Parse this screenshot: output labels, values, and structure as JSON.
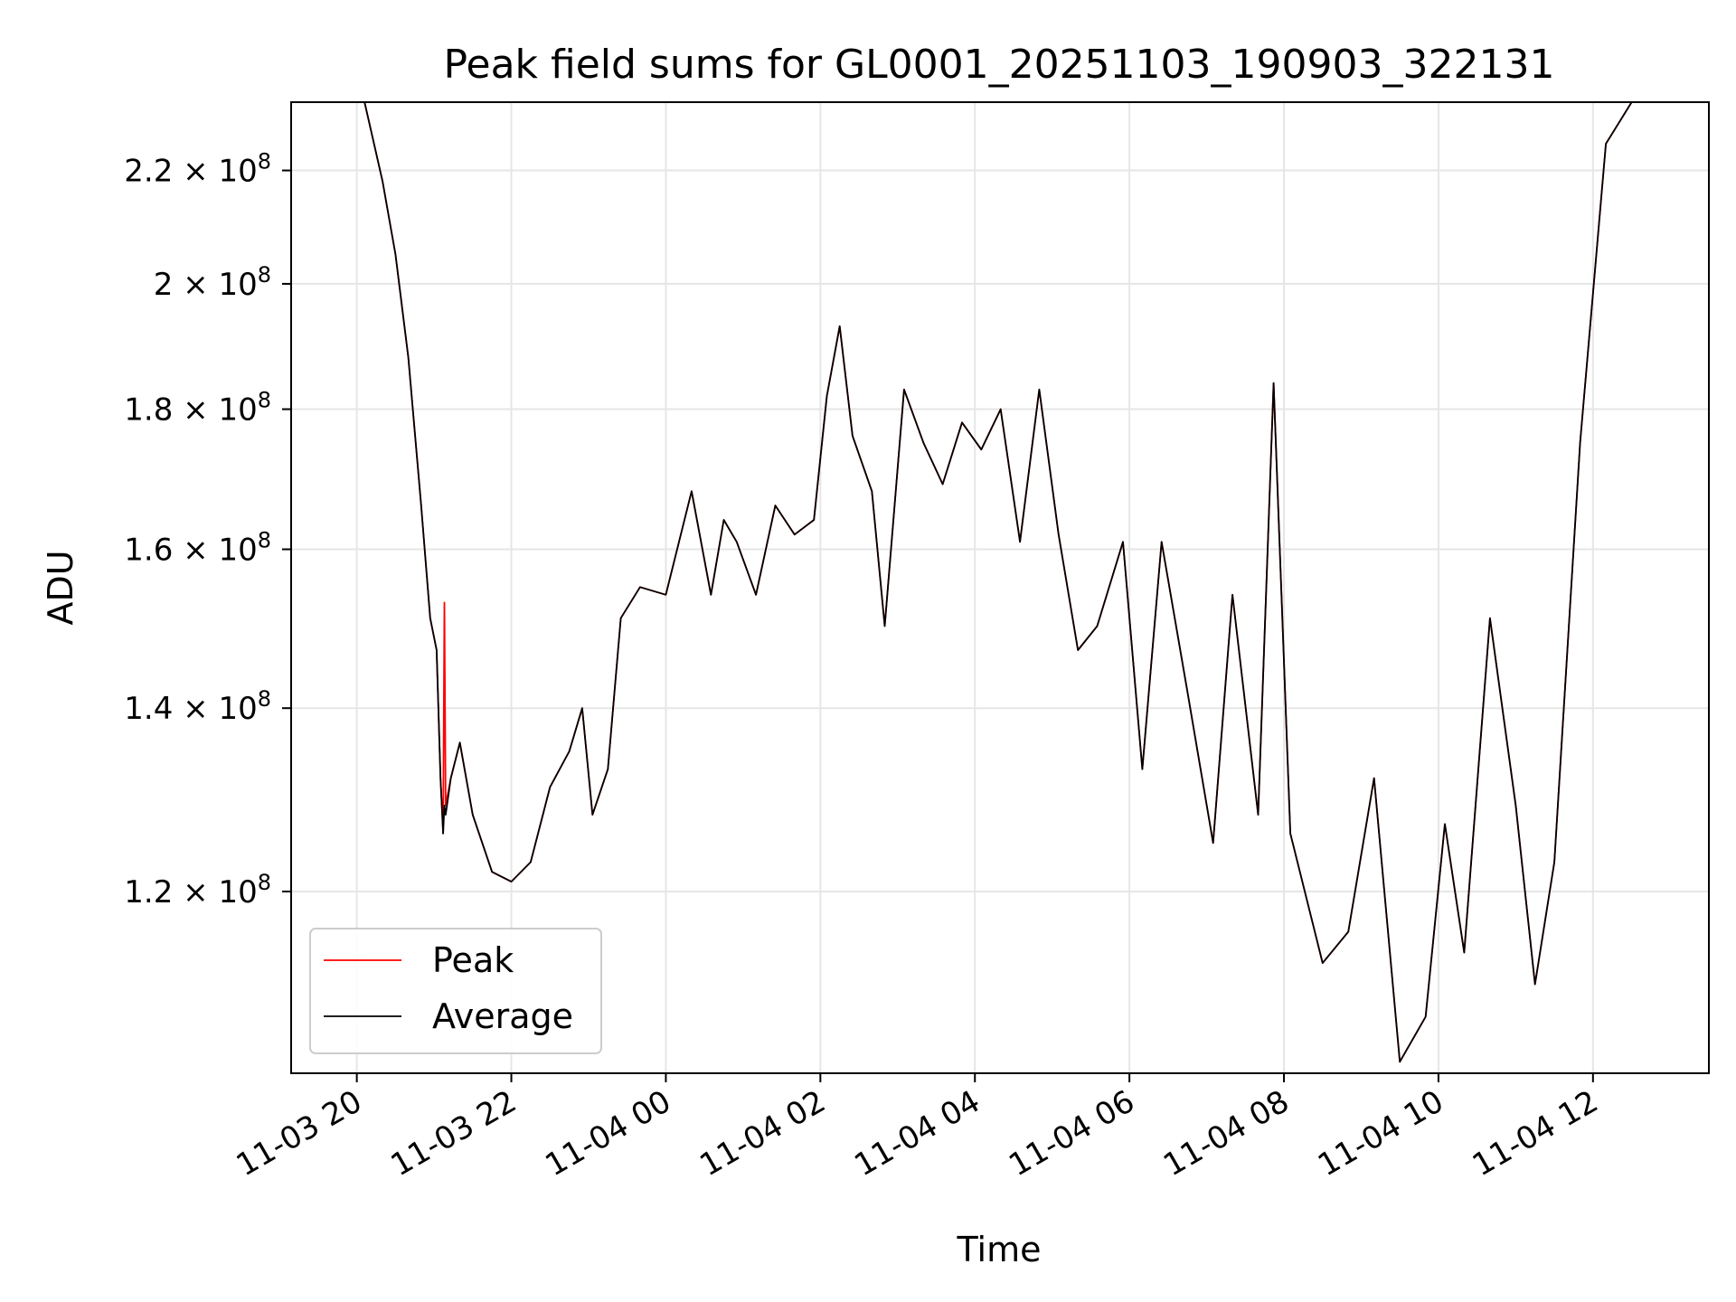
{
  "chart_data": {
    "type": "line",
    "title": "Peak field sums for GL0001_20251103_190903_322131",
    "xlabel": "Time",
    "ylabel": "ADU",
    "yscale": "log",
    "grid": true,
    "legend_position": "lower-left",
    "x_range": [
      "2025-11-03 19:09",
      "2025-11-04 13:30"
    ],
    "ylim": [
      103000000,
      233000000
    ],
    "x_ticks": [
      "2025-11-03 20:00",
      "2025-11-03 22:00",
      "2025-11-04 00:00",
      "2025-11-04 02:00",
      "2025-11-04 04:00",
      "2025-11-04 06:00",
      "2025-11-04 08:00",
      "2025-11-04 10:00",
      "2025-11-04 12:00"
    ],
    "x_tick_labels": [
      "11-03 20",
      "11-03 22",
      "11-04 00",
      "11-04 02",
      "11-04 04",
      "11-04 06",
      "11-04 08",
      "11-04 10",
      "11-04 12"
    ],
    "y_ticks": [
      120000000,
      140000000,
      160000000,
      180000000,
      200000000,
      220000000
    ],
    "y_tick_labels": [
      {
        "mantissa": "1.2",
        "exp": "8"
      },
      {
        "mantissa": "1.4",
        "exp": "8"
      },
      {
        "mantissa": "1.6",
        "exp": "8"
      },
      {
        "mantissa": "1.8",
        "exp": "8"
      },
      {
        "mantissa": "2",
        "exp": "8"
      },
      {
        "mantissa": "2.2",
        "exp": "8"
      }
    ],
    "series": [
      {
        "name": "Peak",
        "color": "#ff0000",
        "points": [
          [
            "2025-11-03 19:50",
            233000000
          ],
          [
            "2025-11-03 20:06",
            233000000
          ],
          [
            "2025-11-03 20:20",
            218000000
          ],
          [
            "2025-11-03 20:30",
            205000000
          ],
          [
            "2025-11-03 20:40",
            188000000
          ],
          [
            "2025-11-03 20:50",
            166000000
          ],
          [
            "2025-11-03 20:57",
            151000000
          ],
          [
            "2025-11-03 21:02",
            147000000
          ],
          [
            "2025-11-03 21:05",
            132000000
          ],
          [
            "2025-11-03 21:07",
            126000000
          ],
          [
            "2025-11-03 21:08",
            153000000
          ],
          [
            "2025-11-03 21:09",
            129000000
          ],
          [
            "2025-11-03 21:13",
            132000000
          ],
          [
            "2025-11-03 21:20",
            136000000
          ],
          [
            "2025-11-03 21:30",
            128000000
          ],
          [
            "2025-11-03 21:45",
            122000000
          ],
          [
            "2025-11-03 22:00",
            121000000
          ],
          [
            "2025-11-03 22:15",
            123000000
          ],
          [
            "2025-11-03 22:30",
            131000000
          ],
          [
            "2025-11-03 22:45",
            135000000
          ],
          [
            "2025-11-03 22:55",
            140000000
          ],
          [
            "2025-11-03 23:03",
            128000000
          ],
          [
            "2025-11-03 23:15",
            133000000
          ],
          [
            "2025-11-03 23:25",
            151000000
          ],
          [
            "2025-11-03 23:40",
            155000000
          ],
          [
            "2025-11-04 00:00",
            154000000
          ],
          [
            "2025-11-04 00:20",
            168000000
          ],
          [
            "2025-11-04 00:35",
            154000000
          ],
          [
            "2025-11-04 00:45",
            164000000
          ],
          [
            "2025-11-04 00:55",
            161000000
          ],
          [
            "2025-11-04 01:10",
            154000000
          ],
          [
            "2025-11-04 01:25",
            166000000
          ],
          [
            "2025-11-04 01:40",
            162000000
          ],
          [
            "2025-11-04 01:55",
            164000000
          ],
          [
            "2025-11-04 02:05",
            182000000
          ],
          [
            "2025-11-04 02:15",
            193000000
          ],
          [
            "2025-11-04 02:25",
            176000000
          ],
          [
            "2025-11-04 02:40",
            168000000
          ],
          [
            "2025-11-04 02:50",
            150000000
          ],
          [
            "2025-11-04 03:05",
            183000000
          ],
          [
            "2025-11-04 03:20",
            175000000
          ],
          [
            "2025-11-04 03:35",
            169000000
          ],
          [
            "2025-11-04 03:50",
            178000000
          ],
          [
            "2025-11-04 04:05",
            174000000
          ],
          [
            "2025-11-04 04:20",
            180000000
          ],
          [
            "2025-11-04 04:35",
            161000000
          ],
          [
            "2025-11-04 04:50",
            183000000
          ],
          [
            "2025-11-04 05:05",
            162000000
          ],
          [
            "2025-11-04 05:20",
            147000000
          ],
          [
            "2025-11-04 05:35",
            150000000
          ],
          [
            "2025-11-04 05:55",
            161000000
          ],
          [
            "2025-11-04 06:10",
            133000000
          ],
          [
            "2025-11-04 06:25",
            161000000
          ],
          [
            "2025-11-04 06:45",
            142000000
          ],
          [
            "2025-11-04 07:05",
            125000000
          ],
          [
            "2025-11-04 07:20",
            154000000
          ],
          [
            "2025-11-04 07:40",
            128000000
          ],
          [
            "2025-11-04 07:52",
            184000000
          ],
          [
            "2025-11-04 08:05",
            126000000
          ],
          [
            "2025-11-04 08:30",
            113000000
          ],
          [
            "2025-11-04 08:50",
            116000000
          ],
          [
            "2025-11-04 09:10",
            132000000
          ],
          [
            "2025-11-04 09:30",
            104000000
          ],
          [
            "2025-11-04 09:50",
            108000000
          ],
          [
            "2025-11-04 10:05",
            127000000
          ],
          [
            "2025-11-04 10:20",
            114000000
          ],
          [
            "2025-11-04 10:40",
            151000000
          ],
          [
            "2025-11-04 11:00",
            129000000
          ],
          [
            "2025-11-04 11:15",
            111000000
          ],
          [
            "2025-11-04 11:30",
            123000000
          ],
          [
            "2025-11-04 11:50",
            175000000
          ],
          [
            "2025-11-04 12:10",
            225000000
          ],
          [
            "2025-11-04 12:30",
            233000000
          ],
          [
            "2025-11-04 13:00",
            233000000
          ]
        ]
      },
      {
        "name": "Average",
        "color": "#000000",
        "points": [
          [
            "2025-11-03 19:50",
            233000000
          ],
          [
            "2025-11-03 20:06",
            233000000
          ],
          [
            "2025-11-03 20:20",
            218000000
          ],
          [
            "2025-11-03 20:30",
            205000000
          ],
          [
            "2025-11-03 20:40",
            188000000
          ],
          [
            "2025-11-03 20:50",
            166000000
          ],
          [
            "2025-11-03 20:57",
            151000000
          ],
          [
            "2025-11-03 21:02",
            147000000
          ],
          [
            "2025-11-03 21:05",
            132000000
          ],
          [
            "2025-11-03 21:07",
            126000000
          ],
          [
            "2025-11-03 21:08",
            129000000
          ],
          [
            "2025-11-03 21:09",
            128000000
          ],
          [
            "2025-11-03 21:13",
            132000000
          ],
          [
            "2025-11-03 21:20",
            136000000
          ],
          [
            "2025-11-03 21:30",
            128000000
          ],
          [
            "2025-11-03 21:45",
            122000000
          ],
          [
            "2025-11-03 22:00",
            121000000
          ],
          [
            "2025-11-03 22:15",
            123000000
          ],
          [
            "2025-11-03 22:30",
            131000000
          ],
          [
            "2025-11-03 22:45",
            135000000
          ],
          [
            "2025-11-03 22:55",
            140000000
          ],
          [
            "2025-11-03 23:03",
            128000000
          ],
          [
            "2025-11-03 23:15",
            133000000
          ],
          [
            "2025-11-03 23:25",
            151000000
          ],
          [
            "2025-11-03 23:40",
            155000000
          ],
          [
            "2025-11-04 00:00",
            154000000
          ],
          [
            "2025-11-04 00:20",
            168000000
          ],
          [
            "2025-11-04 00:35",
            154000000
          ],
          [
            "2025-11-04 00:45",
            164000000
          ],
          [
            "2025-11-04 00:55",
            161000000
          ],
          [
            "2025-11-04 01:10",
            154000000
          ],
          [
            "2025-11-04 01:25",
            166000000
          ],
          [
            "2025-11-04 01:40",
            162000000
          ],
          [
            "2025-11-04 01:55",
            164000000
          ],
          [
            "2025-11-04 02:05",
            182000000
          ],
          [
            "2025-11-04 02:15",
            193000000
          ],
          [
            "2025-11-04 02:25",
            176000000
          ],
          [
            "2025-11-04 02:40",
            168000000
          ],
          [
            "2025-11-04 02:50",
            150000000
          ],
          [
            "2025-11-04 03:05",
            183000000
          ],
          [
            "2025-11-04 03:20",
            175000000
          ],
          [
            "2025-11-04 03:35",
            169000000
          ],
          [
            "2025-11-04 03:50",
            178000000
          ],
          [
            "2025-11-04 04:05",
            174000000
          ],
          [
            "2025-11-04 04:20",
            180000000
          ],
          [
            "2025-11-04 04:35",
            161000000
          ],
          [
            "2025-11-04 04:50",
            183000000
          ],
          [
            "2025-11-04 05:05",
            162000000
          ],
          [
            "2025-11-04 05:20",
            147000000
          ],
          [
            "2025-11-04 05:35",
            150000000
          ],
          [
            "2025-11-04 05:55",
            161000000
          ],
          [
            "2025-11-04 06:10",
            133000000
          ],
          [
            "2025-11-04 06:25",
            161000000
          ],
          [
            "2025-11-04 06:45",
            142000000
          ],
          [
            "2025-11-04 07:05",
            125000000
          ],
          [
            "2025-11-04 07:20",
            154000000
          ],
          [
            "2025-11-04 07:40",
            128000000
          ],
          [
            "2025-11-04 07:52",
            184000000
          ],
          [
            "2025-11-04 08:05",
            126000000
          ],
          [
            "2025-11-04 08:30",
            113000000
          ],
          [
            "2025-11-04 08:50",
            116000000
          ],
          [
            "2025-11-04 09:10",
            132000000
          ],
          [
            "2025-11-04 09:30",
            104000000
          ],
          [
            "2025-11-04 09:50",
            108000000
          ],
          [
            "2025-11-04 10:05",
            127000000
          ],
          [
            "2025-11-04 10:20",
            114000000
          ],
          [
            "2025-11-04 10:40",
            151000000
          ],
          [
            "2025-11-04 11:00",
            129000000
          ],
          [
            "2025-11-04 11:15",
            111000000
          ],
          [
            "2025-11-04 11:30",
            123000000
          ],
          [
            "2025-11-04 11:50",
            175000000
          ],
          [
            "2025-11-04 12:10",
            225000000
          ],
          [
            "2025-11-04 12:30",
            233000000
          ],
          [
            "2025-11-04 13:00",
            233000000
          ]
        ]
      }
    ]
  }
}
